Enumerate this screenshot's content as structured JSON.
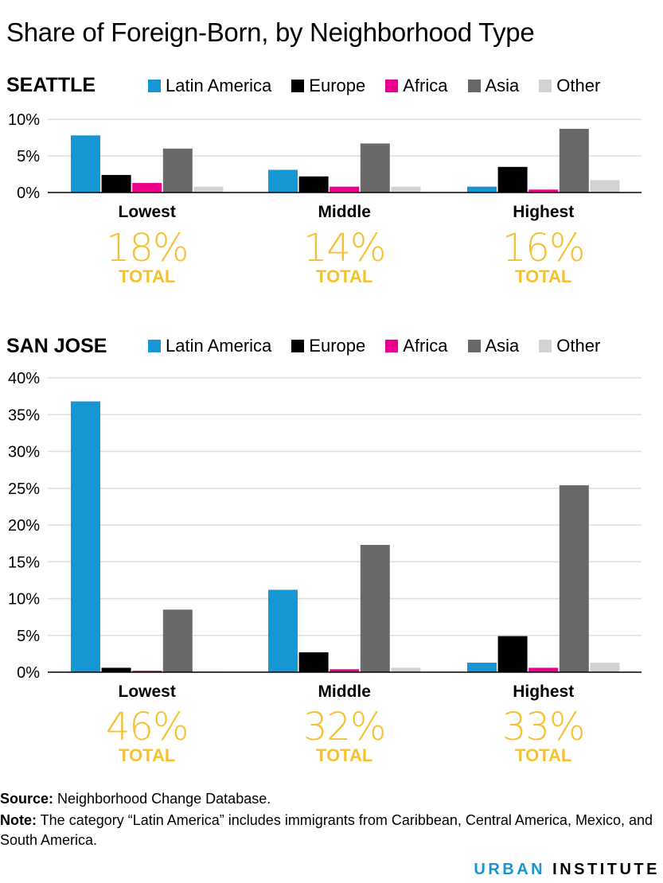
{
  "title": "Share of Foreign-Born, by Neighborhood Type",
  "colors": {
    "Latin America": "#1696d2",
    "Europe": "#000000",
    "Africa": "#ec008b",
    "Asia": "#696969",
    "Other": "#d2d2d2",
    "total": "#f5c131",
    "grid": "#dedede"
  },
  "legend": [
    "Latin America",
    "Europe",
    "Africa",
    "Asia",
    "Other"
  ],
  "chart_data": [
    {
      "type": "bar",
      "title": "SEATTLE",
      "categories": [
        "Lowest",
        "Middle",
        "Highest"
      ],
      "series": [
        {
          "name": "Latin America",
          "values": [
            7.8,
            3.1,
            0.8
          ]
        },
        {
          "name": "Europe",
          "values": [
            2.4,
            2.2,
            3.5
          ]
        },
        {
          "name": "Africa",
          "values": [
            1.3,
            0.8,
            0.4
          ]
        },
        {
          "name": "Asia",
          "values": [
            6.0,
            6.7,
            8.7
          ]
        },
        {
          "name": "Other",
          "values": [
            0.8,
            0.8,
            1.7
          ]
        }
      ],
      "ylim": [
        0,
        10
      ],
      "yticks": [
        "0%",
        "5%",
        "10%"
      ],
      "totals": [
        "18%",
        "14%",
        "16%"
      ],
      "total_label": "TOTAL",
      "grid": true,
      "legend_position": "top"
    },
    {
      "type": "bar",
      "title": "SAN JOSE",
      "categories": [
        "Lowest",
        "Middle",
        "Highest"
      ],
      "series": [
        {
          "name": "Latin America",
          "values": [
            36.8,
            11.2,
            1.3
          ]
        },
        {
          "name": "Europe",
          "values": [
            0.6,
            2.7,
            4.9
          ]
        },
        {
          "name": "Africa",
          "values": [
            0.2,
            0.4,
            0.6
          ]
        },
        {
          "name": "Asia",
          "values": [
            8.5,
            17.3,
            25.4
          ]
        },
        {
          "name": "Other",
          "values": [
            0.1,
            0.6,
            1.3
          ]
        }
      ],
      "ylim": [
        0,
        40
      ],
      "yticks": [
        "0%",
        "5%",
        "10%",
        "15%",
        "20%",
        "25%",
        "30%",
        "35%",
        "40%"
      ],
      "totals": [
        "46%",
        "32%",
        "33%"
      ],
      "total_label": "TOTAL",
      "grid": true,
      "legend_position": "top"
    }
  ],
  "notes": {
    "source_label": "Source:",
    "source_text": " Neighborhood Change Database.",
    "note_label": "Note:",
    "note_text": " The category “Latin America” includes immigrants from Caribbean, Central America, Mexico, and South America."
  },
  "brand": {
    "part1": "URBAN",
    "part2": "INSTITUTE"
  }
}
